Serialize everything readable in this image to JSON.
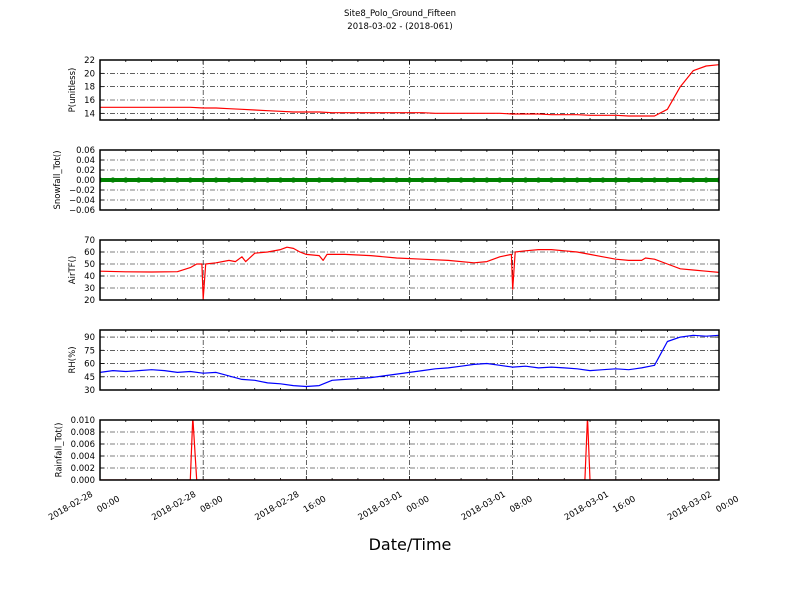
{
  "chart_data": {
    "type": "line",
    "title": "Site8_Polo_Ground_Fifteen",
    "subtitle": "2018-03-02 - (2018-061)",
    "xlabel": "Date/Time",
    "xlim": [
      "2018-02-28 00:00",
      "2018-03-02 00:00"
    ],
    "xticks": [
      {
        "date": "2018-02-28",
        "time": "00:00",
        "at": "2018-02-28 00:00"
      },
      {
        "date": "2018-02-28",
        "time": "08:00",
        "at": "2018-02-28 08:00"
      },
      {
        "date": "2018-02-28",
        "time": "16:00",
        "at": "2018-02-28 16:00"
      },
      {
        "date": "2018-03-01",
        "time": "00:00",
        "at": "2018-03-01 00:00"
      },
      {
        "date": "2018-03-01",
        "time": "08:00",
        "at": "2018-03-01 08:00"
      },
      {
        "date": "2018-03-01",
        "time": "16:00",
        "at": "2018-03-01 16:00"
      },
      {
        "date": "2018-03-02",
        "time": "00:00",
        "at": "2018-03-02 00:00"
      }
    ],
    "grid": true,
    "hourly_x": [
      "2018-02-28 00:00",
      "2018-02-28 01:00",
      "2018-02-28 02:00",
      "2018-02-28 03:00",
      "2018-02-28 04:00",
      "2018-02-28 05:00",
      "2018-02-28 06:00",
      "2018-02-28 07:00",
      "2018-02-28 08:00",
      "2018-02-28 09:00",
      "2018-02-28 10:00",
      "2018-02-28 11:00",
      "2018-02-28 12:00",
      "2018-02-28 13:00",
      "2018-02-28 14:00",
      "2018-02-28 15:00",
      "2018-02-28 16:00",
      "2018-02-28 17:00",
      "2018-02-28 18:00",
      "2018-02-28 19:00",
      "2018-02-28 20:00",
      "2018-02-28 21:00",
      "2018-02-28 22:00",
      "2018-02-28 23:00",
      "2018-03-01 00:00",
      "2018-03-01 01:00",
      "2018-03-01 02:00",
      "2018-03-01 03:00",
      "2018-03-01 04:00",
      "2018-03-01 05:00",
      "2018-03-01 06:00",
      "2018-03-01 07:00",
      "2018-03-01 08:00",
      "2018-03-01 09:00",
      "2018-03-01 10:00",
      "2018-03-01 11:00",
      "2018-03-01 12:00",
      "2018-03-01 13:00",
      "2018-03-01 14:00",
      "2018-03-01 15:00",
      "2018-03-01 16:00",
      "2018-03-01 17:00",
      "2018-03-01 18:00",
      "2018-03-01 19:00",
      "2018-03-01 20:00",
      "2018-03-01 21:00",
      "2018-03-01 22:00",
      "2018-03-01 23:00",
      "2018-03-02 00:00"
    ],
    "panels": [
      {
        "ylabel": "P(unitless)",
        "ylim": [
          13,
          22
        ],
        "yticks": [
          "14",
          "16",
          "18",
          "20",
          "22"
        ],
        "color": "#ff0000",
        "marker": "none",
        "values": [
          14.9,
          14.9,
          14.9,
          14.9,
          14.9,
          14.9,
          14.9,
          14.9,
          14.8,
          14.8,
          14.7,
          14.6,
          14.5,
          14.4,
          14.3,
          14.2,
          14.2,
          14.2,
          14.1,
          14.1,
          14.1,
          14.1,
          14.1,
          14.1,
          14.1,
          14.1,
          14.0,
          14.0,
          14.0,
          14.0,
          14.0,
          14.0,
          13.9,
          13.9,
          13.9,
          13.8,
          13.8,
          13.8,
          13.7,
          13.7,
          13.7,
          13.6,
          13.6,
          13.6,
          14.6,
          18.0,
          20.4,
          21.1,
          21.3
        ]
      },
      {
        "ylabel": "Snowfall_Tot()",
        "ylim": [
          -0.06,
          0.06
        ],
        "yticks": [
          "−0.06",
          "−0.04",
          "−0.02",
          "0.00",
          "0.02",
          "0.04",
          "0.06"
        ],
        "color": "#008000",
        "marker": "dot",
        "values": [
          0,
          0,
          0,
          0,
          0,
          0,
          0,
          0,
          0,
          0,
          0,
          0,
          0,
          0,
          0,
          0,
          0,
          0,
          0,
          0,
          0,
          0,
          0,
          0,
          0,
          0,
          0,
          0,
          0,
          0,
          0,
          0,
          0,
          0,
          0,
          0,
          0,
          0,
          0,
          0,
          0,
          0,
          0,
          0,
          0,
          0,
          0,
          0,
          0
        ]
      },
      {
        "ylabel": "AirTF()",
        "ylim": [
          20,
          70
        ],
        "yticks": [
          "20",
          "30",
          "40",
          "50",
          "60",
          "70"
        ],
        "color": "#ff0000",
        "marker": "none",
        "x": [
          "2018-02-28 00:00",
          "2018-02-28 02:00",
          "2018-02-28 04:00",
          "2018-02-28 06:00",
          "2018-02-28 07:00",
          "2018-02-28 07:30",
          "2018-02-28 07:54",
          "2018-02-28 08:00",
          "2018-02-28 08:12",
          "2018-02-28 09:00",
          "2018-02-28 10:00",
          "2018-02-28 10:30",
          "2018-02-28 11:00",
          "2018-02-28 11:18",
          "2018-02-28 11:42",
          "2018-02-28 12:00",
          "2018-02-28 13:00",
          "2018-02-28 14:00",
          "2018-02-28 14:30",
          "2018-02-28 15:00",
          "2018-02-28 15:30",
          "2018-02-28 16:00",
          "2018-02-28 17:00",
          "2018-02-28 17:18",
          "2018-02-28 17:36",
          "2018-02-28 19:00",
          "2018-02-28 21:00",
          "2018-02-28 23:00",
          "2018-03-01 01:00",
          "2018-03-01 03:00",
          "2018-03-01 05:00",
          "2018-03-01 06:00",
          "2018-03-01 07:00",
          "2018-03-01 07:54",
          "2018-03-01 08:00",
          "2018-03-01 08:12",
          "2018-03-01 09:00",
          "2018-03-01 10:00",
          "2018-03-01 11:00",
          "2018-03-01 12:00",
          "2018-03-01 13:00",
          "2018-03-01 14:00",
          "2018-03-01 15:00",
          "2018-03-01 16:00",
          "2018-03-01 17:00",
          "2018-03-01 18:00",
          "2018-03-01 18:18",
          "2018-03-01 19:00",
          "2018-03-01 20:00",
          "2018-03-01 21:00",
          "2018-03-01 22:00",
          "2018-03-01 23:00",
          "2018-03-02 00:00"
        ],
        "values": [
          44,
          43.5,
          43.3,
          43.6,
          47,
          50,
          50,
          21,
          50,
          51,
          53,
          52,
          56,
          52,
          56,
          59,
          60,
          62,
          64,
          63,
          60,
          58,
          57,
          53,
          58,
          58,
          57,
          55,
          54,
          53,
          51,
          52,
          56,
          58,
          29,
          60,
          61,
          62,
          62,
          61,
          60,
          58,
          56,
          54,
          53,
          53,
          55,
          54,
          50,
          46,
          45,
          44,
          43
        ]
      },
      {
        "ylabel": "RH(%)",
        "ylim": [
          30,
          98
        ],
        "yticks": [
          "30",
          "45",
          "60",
          "75",
          "90"
        ],
        "color": "#0000ff",
        "marker": "none",
        "values": [
          50,
          52,
          51,
          52,
          53,
          52,
          50,
          51,
          49,
          50,
          46,
          42,
          41,
          38,
          37,
          35,
          34,
          35,
          41,
          42,
          43,
          44,
          46,
          48,
          50,
          52,
          54,
          55,
          57,
          59,
          60,
          58,
          56,
          57,
          55,
          56,
          55,
          54,
          52,
          53,
          54,
          53,
          55,
          58,
          85,
          90,
          92,
          91,
          92
        ]
      },
      {
        "ylabel": "Rainfall_Tot()",
        "ylim": [
          0,
          0.01
        ],
        "yticks": [
          "0.000",
          "0.002",
          "0.004",
          "0.006",
          "0.008",
          "0.010"
        ],
        "color": "#ff0000",
        "marker": "none",
        "x": [
          "2018-02-28 00:00",
          "2018-02-28 07:00",
          "2018-02-28 07:12",
          "2018-02-28 07:30",
          "2018-03-01 13:36",
          "2018-03-01 13:48",
          "2018-03-01 14:00",
          "2018-03-02 00:00"
        ],
        "values": [
          0,
          0,
          0.0105,
          0,
          0,
          0.0105,
          0,
          0
        ]
      }
    ]
  }
}
